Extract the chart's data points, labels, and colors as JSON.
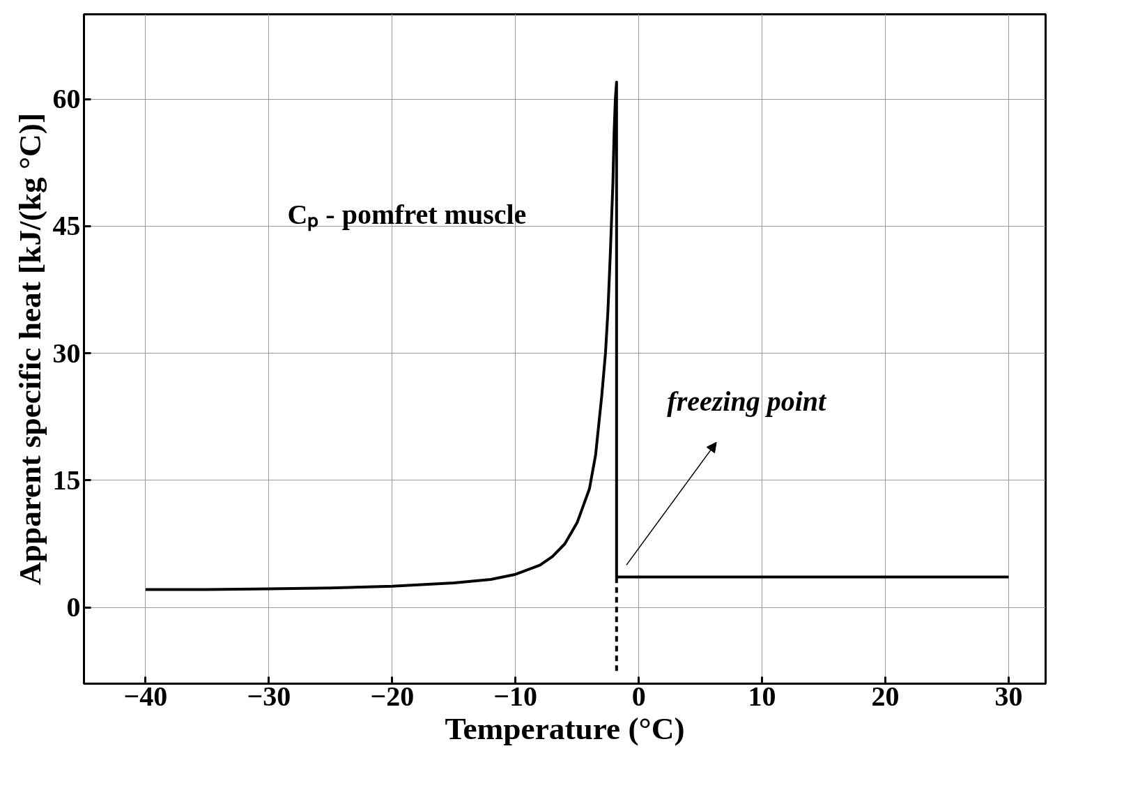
{
  "chart_data": {
    "type": "line",
    "xlabel": "Temperature (°C)",
    "ylabel": "Apparent specific heat [kJ/(kg °C)]",
    "xlim": [
      -45,
      33
    ],
    "ylim": [
      -9,
      70
    ],
    "xticks": [
      -40,
      -30,
      -20,
      -10,
      0,
      10,
      20,
      30
    ],
    "yticks": [
      0,
      15,
      30,
      45,
      60
    ],
    "grid": true,
    "marker": "none",
    "series": [
      {
        "color": "#000000",
        "line_style": "solid",
        "x": [
          -40,
          -35,
          -30,
          -25,
          -20,
          -15,
          -12,
          -10,
          -8,
          -7,
          -6,
          -5,
          -4.5,
          -4,
          -3.5,
          -3,
          -2.7,
          -2.5,
          -2.3,
          -2.1,
          -2.0,
          -1.9,
          -1.8,
          -1.8,
          0,
          10,
          20,
          30
        ],
        "values": [
          2.1,
          2.1,
          2.2,
          2.3,
          2.5,
          2.9,
          3.3,
          3.9,
          5.0,
          6.0,
          7.5,
          10,
          12,
          14,
          18,
          25,
          30,
          35,
          42,
          50,
          56,
          60,
          62,
          3.6,
          3.6,
          3.6,
          3.6,
          3.6
        ]
      },
      {
        "color": "#000000",
        "line_style": "dashed",
        "x": [
          -1.8,
          -1.8
        ],
        "values": [
          -7.5,
          3.6
        ]
      }
    ],
    "annotations": [
      "Cₚ - pomfret muscle",
      "freezing point"
    ]
  }
}
